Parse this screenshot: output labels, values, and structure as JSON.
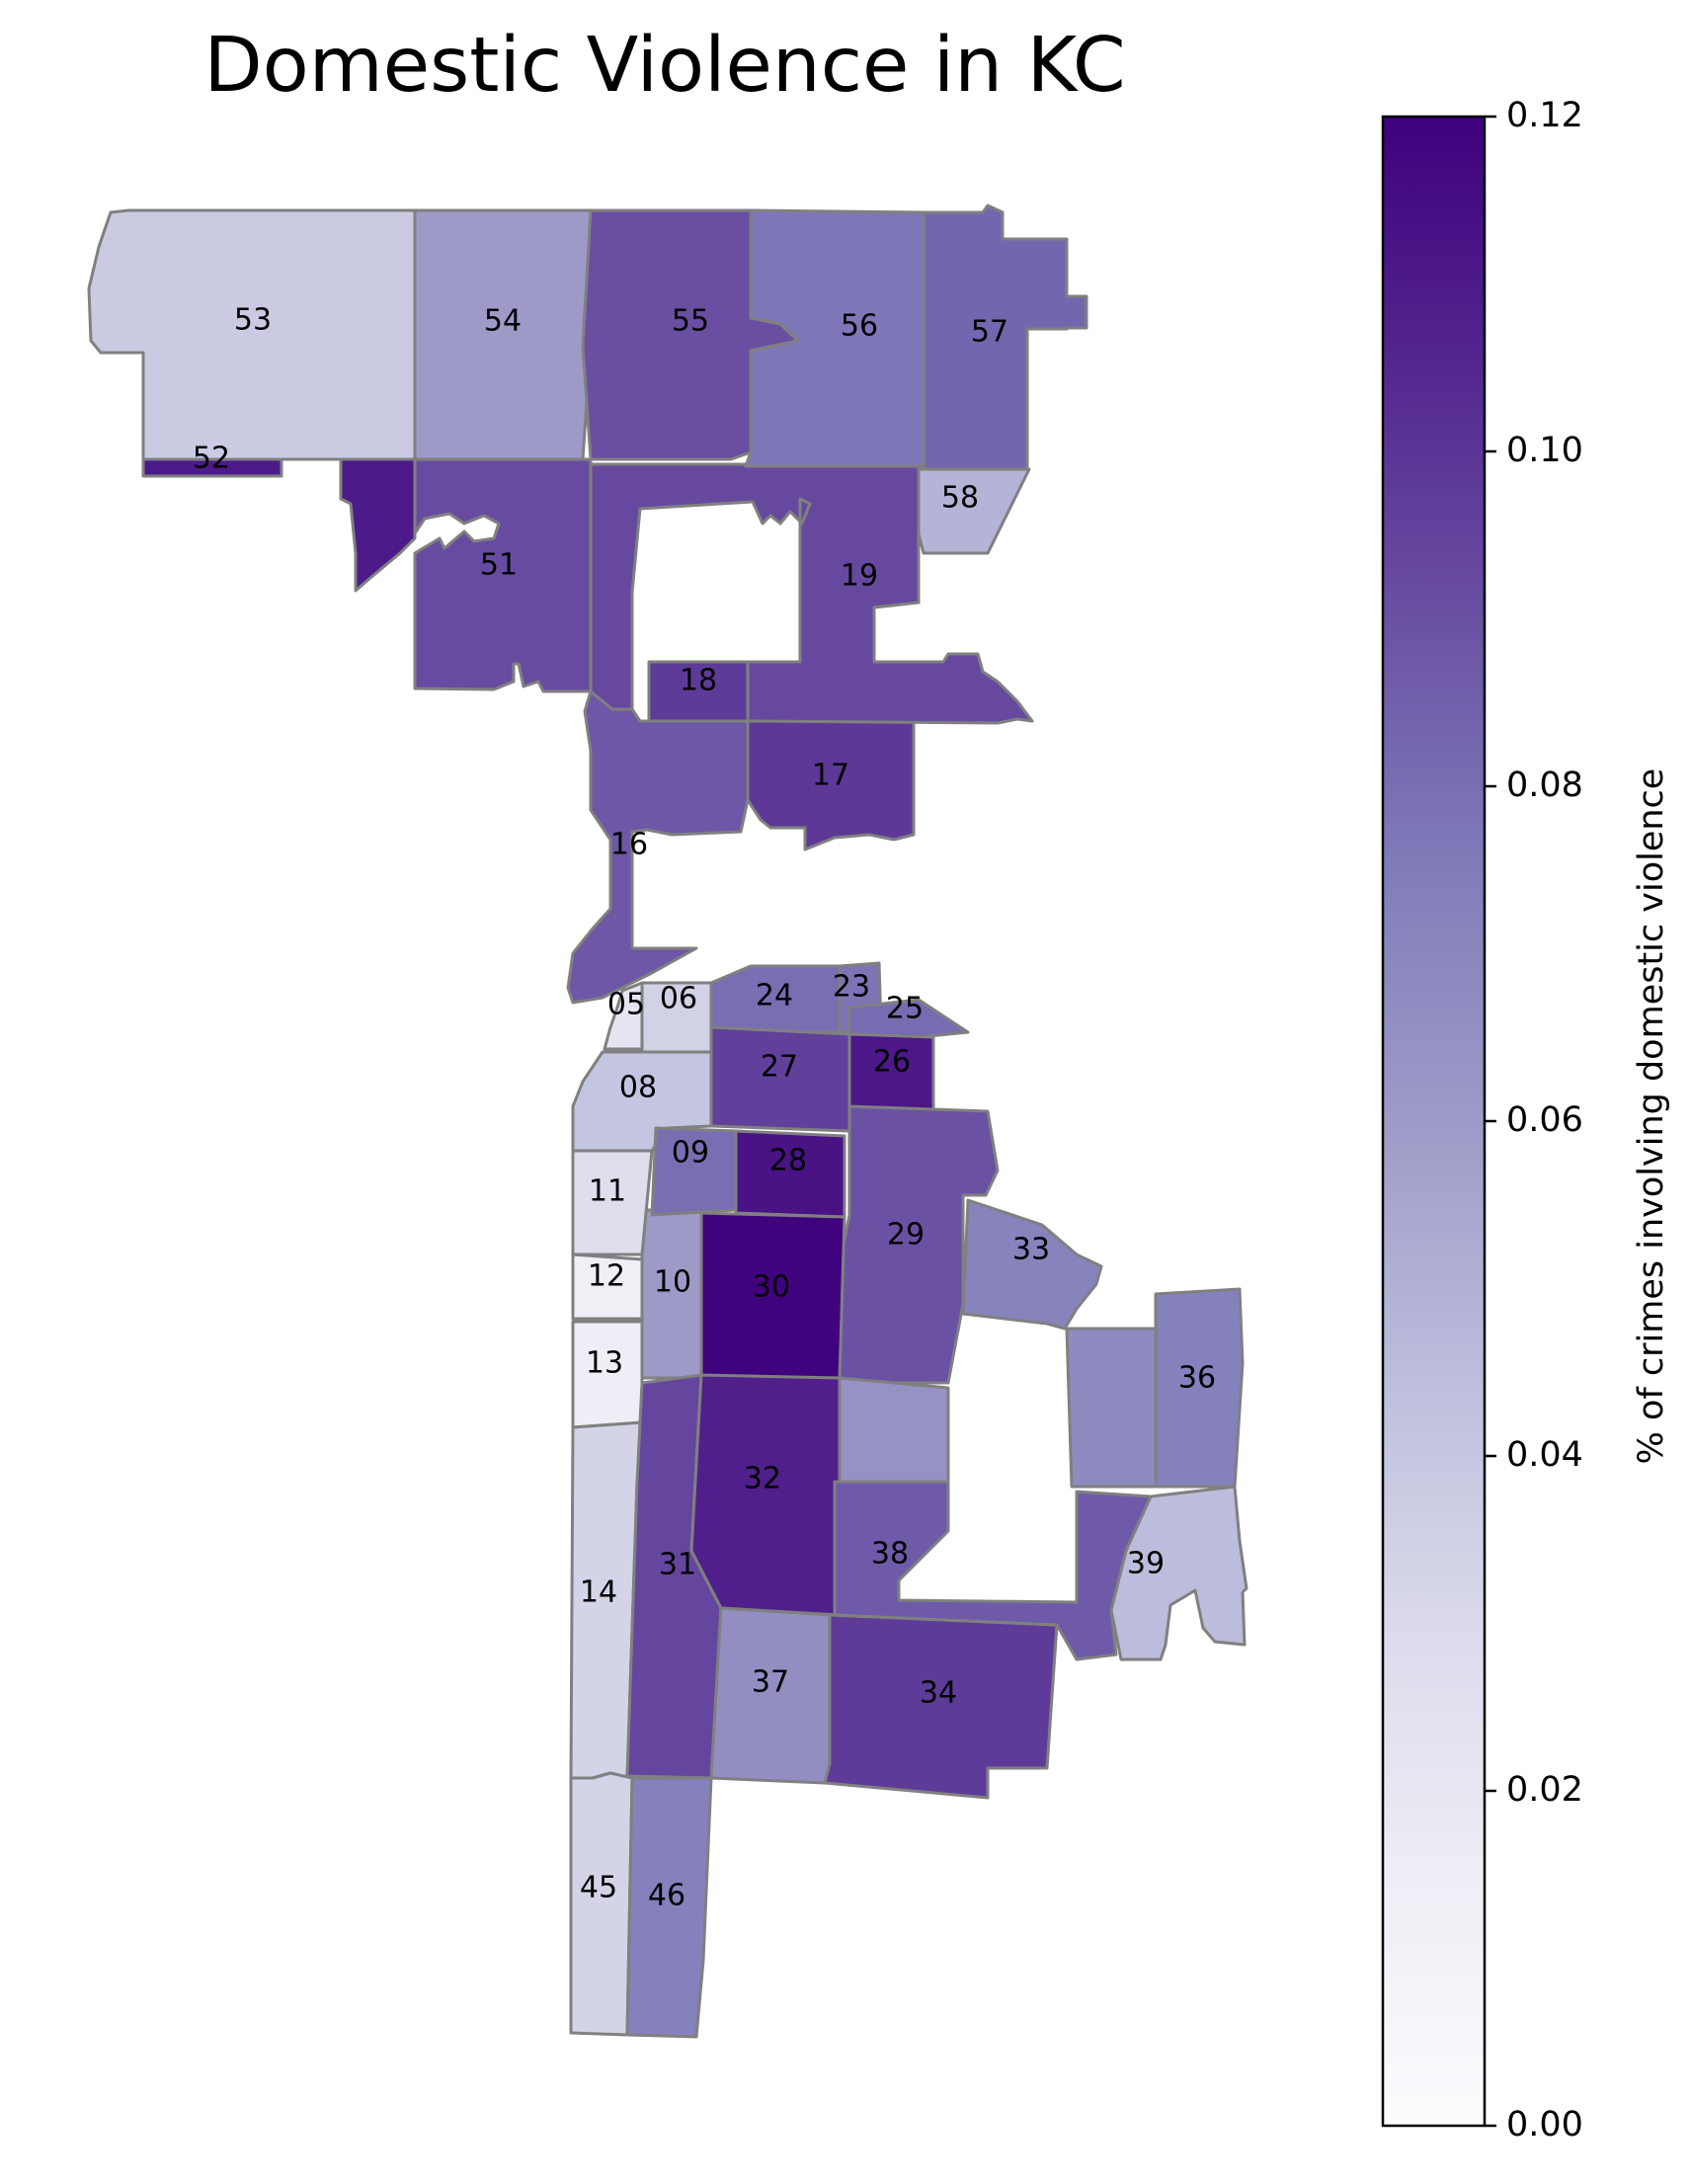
{
  "chart_data": {
    "type": "choropleth",
    "title": "Domestic Violence in KC",
    "colorbar": {
      "label": "% of crimes involving domestic violence",
      "vmin": 0.0,
      "vmax": 0.12,
      "ticks": [
        "0.00",
        "0.02",
        "0.04",
        "0.06",
        "0.08",
        "0.10",
        "0.12"
      ],
      "colormap": "Purples"
    },
    "districts": [
      {
        "id": "53",
        "value": 0.038
      },
      {
        "id": "54",
        "value": 0.06
      },
      {
        "id": "55",
        "value": 0.091
      },
      {
        "id": "56",
        "value": 0.077
      },
      {
        "id": "57",
        "value": 0.083
      },
      {
        "id": "52",
        "value": 0.11
      },
      {
        "id": "58",
        "value": 0.049
      },
      {
        "id": "51",
        "value": 0.092
      },
      {
        "id": "19",
        "value": 0.093
      },
      {
        "id": "18",
        "value": 0.098
      },
      {
        "id": "17",
        "value": 0.099
      },
      {
        "id": "16",
        "value": 0.088
      },
      {
        "id": "05",
        "value": 0.022
      },
      {
        "id": "06",
        "value": 0.034
      },
      {
        "id": "24",
        "value": 0.08
      },
      {
        "id": "23",
        "value": 0.078
      },
      {
        "id": "25",
        "value": 0.081
      },
      {
        "id": "27",
        "value": 0.096
      },
      {
        "id": "26",
        "value": 0.111
      },
      {
        "id": "08",
        "value": 0.041
      },
      {
        "id": "09",
        "value": 0.08
      },
      {
        "id": "28",
        "value": 0.113
      },
      {
        "id": "11",
        "value": 0.027
      },
      {
        "id": "29",
        "value": 0.09
      },
      {
        "id": "33",
        "value": 0.072
      },
      {
        "id": "12",
        "value": 0.013
      },
      {
        "id": "10",
        "value": 0.06
      },
      {
        "id": "30",
        "value": 0.119
      },
      {
        "id": "13",
        "value": 0.015
      },
      {
        "id": "36",
        "value": 0.073
      },
      {
        "id": "32",
        "value": 0.108
      },
      {
        "id": "31",
        "value": 0.094
      },
      {
        "id": "38",
        "value": 0.087
      },
      {
        "id": "39",
        "value": 0.045
      },
      {
        "id": "14",
        "value": 0.033
      },
      {
        "id": "37",
        "value": 0.066
      },
      {
        "id": "34",
        "value": 0.098
      },
      {
        "id": "45",
        "value": 0.033
      },
      {
        "id": "46",
        "value": 0.073
      }
    ],
    "unlabeled_regions": [
      {
        "near": "36",
        "value": 0.068
      },
      {
        "near": "29",
        "value": 0.064
      },
      {
        "near": "38",
        "value": 0.086
      }
    ]
  }
}
